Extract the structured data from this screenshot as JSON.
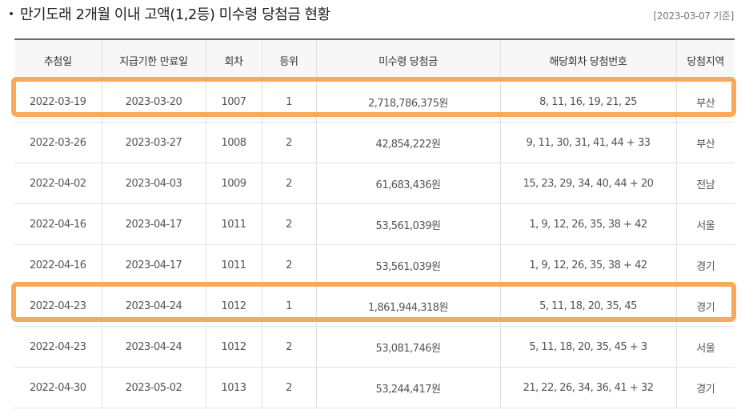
{
  "header": {
    "title": "만기도래 2개월 이내 고액(1,2등) 미수령 당첨금 현황",
    "as_of": "[2023-03-07 기준]"
  },
  "table": {
    "columns": [
      "추첨일",
      "지급기한 만료일",
      "회차",
      "등위",
      "미수령 당첨금",
      "해당회차 당첨번호",
      "당첨지역"
    ],
    "rows": [
      {
        "draw_date": "2022-03-19",
        "expiry": "2023-03-20",
        "round": "1007",
        "rank": "1",
        "amount": "2,718,786,375원",
        "numbers": "8, 11, 16, 19, 21, 25",
        "region": "부산"
      },
      {
        "draw_date": "2022-03-26",
        "expiry": "2023-03-27",
        "round": "1008",
        "rank": "2",
        "amount": "42,854,222원",
        "numbers": "9, 11, 30, 31, 41, 44 + 33",
        "region": "부산"
      },
      {
        "draw_date": "2022-04-02",
        "expiry": "2023-04-03",
        "round": "1009",
        "rank": "2",
        "amount": "61,683,436원",
        "numbers": "15, 23, 29, 34, 40, 44 + 20",
        "region": "전남"
      },
      {
        "draw_date": "2022-04-16",
        "expiry": "2023-04-17",
        "round": "1011",
        "rank": "2",
        "amount": "53,561,039원",
        "numbers": "1, 9, 12, 26, 35, 38 + 42",
        "region": "서울"
      },
      {
        "draw_date": "2022-04-16",
        "expiry": "2023-04-17",
        "round": "1011",
        "rank": "2",
        "amount": "53,561,039원",
        "numbers": "1, 9, 12, 26, 35, 38 + 42",
        "region": "경기"
      },
      {
        "draw_date": "2022-04-23",
        "expiry": "2023-04-24",
        "round": "1012",
        "rank": "1",
        "amount": "1,861,944,318원",
        "numbers": "5, 11, 18, 20, 35, 45",
        "region": "경기"
      },
      {
        "draw_date": "2022-04-23",
        "expiry": "2023-04-24",
        "round": "1012",
        "rank": "2",
        "amount": "53,081,746원",
        "numbers": "5, 11, 18, 20, 35, 45 + 3",
        "region": "서울"
      },
      {
        "draw_date": "2022-04-30",
        "expiry": "2023-05-02",
        "round": "1013",
        "rank": "2",
        "amount": "53,244,417원",
        "numbers": "21, 22, 26, 34, 36, 41 + 32",
        "region": "경기"
      }
    ]
  },
  "highlight": {
    "color": "#f9a95a",
    "rows": [
      0,
      5
    ]
  }
}
